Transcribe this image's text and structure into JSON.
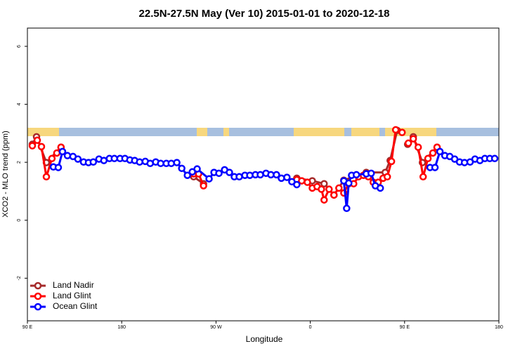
{
  "chart_data": {
    "type": "line",
    "title": "22.5N-27.5N May (Ver 10)   2015-01-01 to 2020-12-18",
    "x_label": "Longitude",
    "y_label": "XCO2 - MLO trend (ppm)",
    "xlim": [
      90,
      540
    ],
    "ylim": [
      -3.47,
      6.63
    ],
    "xticks": [
      {
        "value": 90,
        "label": "90 E"
      },
      {
        "value": 180,
        "label": "180"
      },
      {
        "value": 270,
        "label": "90 W"
      },
      {
        "value": 360,
        "label": "0"
      },
      {
        "value": 450,
        "label": "90 E"
      },
      {
        "value": 540,
        "label": "180"
      }
    ],
    "yticks": [
      -2,
      0,
      2,
      4,
      6
    ],
    "legend": "bottom-left",
    "series": [
      {
        "name": "Land Nadir",
        "color": "#a52a2a",
        "x": [
          94.7,
          98.7,
          108.1,
          122.1,
          null,
          248.7,
          258.1,
          null,
          347.1,
          361.9,
          373.2,
          382.6,
          392,
          413.4,
          431.5,
          436.2,
          442.9,
          null,
          452.9,
          458.3,
          467,
          481
        ],
        "values": [
          2.62,
          2.88,
          1.99,
          2.52,
          null,
          1.5,
          1.26,
          null,
          1.45,
          1.36,
          1.26,
          0.87,
          1.38,
          1.65,
          1.65,
          2.06,
          3.1,
          null,
          2.62,
          2.88,
          1.99,
          2.52
        ]
      },
      {
        "name": "Land Glint",
        "color": "#ff0000",
        "x": [
          94.7,
          99.4,
          103.4,
          108.1,
          113.4,
          118.1,
          122.1,
          null,
          248.7,
          253.4,
          258.1,
          null,
          347.1,
          351.8,
          357.2,
          361.9,
          366.5,
          370.6,
          373.2,
          377.9,
          382.6,
          387.3,
          392,
          396.7,
          401.4,
          406,
          410.7,
          415.4,
          420.1,
          424.8,
          429.5,
          433.5,
          437.5,
          441.5,
          447.6,
          null,
          453.6,
          458.3,
          463,
          467.7,
          472.3,
          477,
          481
        ],
        "values": [
          2.57,
          2.76,
          2.54,
          1.5,
          2.13,
          2.32,
          2.52,
          null,
          1.6,
          1.6,
          1.19,
          null,
          1.4,
          1.36,
          1.31,
          1.11,
          1.16,
          1.07,
          0.7,
          1.07,
          0.87,
          1.11,
          0.94,
          1.26,
          1.26,
          1.5,
          1.55,
          1.5,
          1.31,
          1.31,
          1.45,
          1.5,
          2.03,
          3.12,
          3.03,
          null,
          2.66,
          2.81,
          2.52,
          1.5,
          2.13,
          2.32,
          2.52
        ]
      },
      {
        "name": "Ocean Glint",
        "color": "#0000ff",
        "x": [
          114.8,
          119.5,
          123.5,
          128.2,
          133.5,
          138.2,
          143.6,
          148.3,
          152.9,
          158.3,
          163,
          168.3,
          173,
          178.4,
          183.1,
          187.8,
          192.4,
          197.1,
          202.5,
          207.2,
          212.5,
          217.2,
          222.6,
          227.3,
          232.6,
          237.3,
          242.7,
          247.4,
          252,
          263.4,
          268.1,
          272.8,
          278.2,
          282.8,
          287.5,
          292.2,
          297.6,
          302.3,
          307.6,
          312.3,
          317.7,
          322.4,
          327.7,
          332.4,
          337.7,
          342.4,
          347.1,
          null,
          392,
          394.7,
          396.7,
          399.4,
          404,
          413.4,
          418.1,
          422.1,
          426.8,
          null,
          474.3,
          479,
          483.7,
          488.4,
          493.1,
          497.8,
          502.5,
          507.2,
          512.5,
          517.2,
          521.9,
          526.6,
          531.3,
          536
        ],
        "values": [
          1.84,
          1.82,
          2.37,
          2.23,
          2.2,
          2.11,
          2.01,
          1.99,
          2.01,
          2.11,
          2.06,
          2.13,
          2.13,
          2.13,
          2.13,
          2.08,
          2.06,
          2.01,
          2.03,
          1.96,
          2.01,
          1.96,
          1.96,
          1.96,
          1.99,
          1.79,
          1.55,
          1.67,
          1.77,
          1.43,
          1.65,
          1.62,
          1.74,
          1.65,
          1.5,
          1.5,
          1.55,
          1.55,
          1.57,
          1.57,
          1.62,
          1.57,
          1.57,
          1.45,
          1.48,
          1.33,
          1.23,
          null,
          1.36,
          0.41,
          1.28,
          1.55,
          1.57,
          1.6,
          1.62,
          1.19,
          1.11,
          null,
          1.82,
          1.82,
          2.37,
          2.23,
          2.2,
          2.11,
          2.01,
          1.99,
          2.01,
          2.11,
          2.06,
          2.13,
          2.13,
          2.13
        ]
      }
    ]
  }
}
